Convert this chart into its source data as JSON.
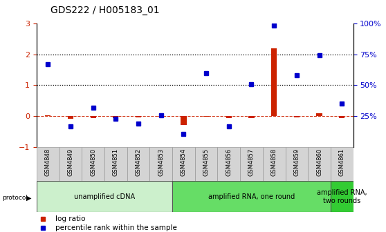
{
  "title": "GDS222 / H005183_01",
  "samples": [
    "GSM4848",
    "GSM4849",
    "GSM4850",
    "GSM4851",
    "GSM4852",
    "GSM4853",
    "GSM4854",
    "GSM4855",
    "GSM4856",
    "GSM4857",
    "GSM4858",
    "GSM4859",
    "GSM4860",
    "GSM4861"
  ],
  "log_ratio": [
    0.03,
    -0.08,
    -0.05,
    -0.06,
    -0.03,
    -0.02,
    -0.27,
    -0.02,
    -0.06,
    -0.05,
    2.18,
    -0.03,
    0.1,
    -0.05
  ],
  "percentile_rank_pct": [
    67,
    17,
    32,
    23,
    19,
    26,
    11,
    60,
    17,
    51,
    98,
    58,
    74,
    35
  ],
  "protocol_groups": [
    {
      "label": "unamplified cDNA",
      "start": 0,
      "end": 5,
      "color": "#ccf0cc"
    },
    {
      "label": "amplified RNA, one round",
      "start": 6,
      "end": 12,
      "color": "#66dd66"
    },
    {
      "label": "amplified RNA,\ntwo rounds",
      "start": 13,
      "end": 13,
      "color": "#33cc33"
    }
  ],
  "left_ylim": [
    -1,
    3
  ],
  "right_yticks_pct": [
    25,
    50,
    75,
    100
  ],
  "left_yticks": [
    -1,
    0,
    1,
    2,
    3
  ],
  "dotted_lines": [
    1,
    2
  ],
  "log_ratio_color": "#cc2200",
  "percentile_color": "#0000cc",
  "bg_color": "#ffffff",
  "label_box_color": "#d4d4d4",
  "label_box_edge": "#999999"
}
